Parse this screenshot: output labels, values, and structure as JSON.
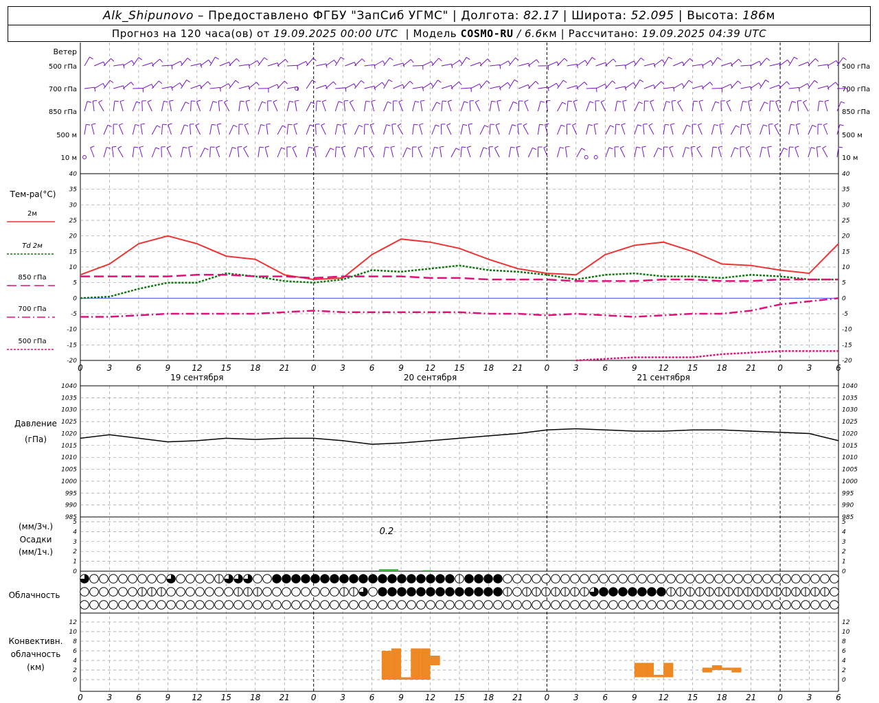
{
  "header": {
    "line1": {
      "station": "Alk_Shipunovo",
      "provided": " – Предоставлено ФГБУ \"ЗапСиб УГМС\" | Долгота: ",
      "lon": "82.17",
      "lat_label": " | Широта: ",
      "lat": "52.095",
      "alt_label": " | Высота: ",
      "alt": "186",
      "alt_unit": "м"
    },
    "line2": {
      "forecast": "Прогноз на 120 часа(ов) от ",
      "start": "19.09.2025 00:00 UTC",
      "model_label": "  | Модель ",
      "model": "COSMO-RU",
      "res": " / 6.6",
      "res_unit": "км",
      "calc_label": " | Рассчитано: ",
      "calc": "19.09.2025 04:39 UTC"
    }
  },
  "colors": {
    "t2m": "#ee3333",
    "td2m": "#117711",
    "t850": "#dd1177",
    "t700": "#dd1177",
    "t500": "#dd1177",
    "wind": "#7711cc",
    "precip": "#33bb33",
    "convective": "#ee8822",
    "pressure": "#000000",
    "zero_line": "#3355ff"
  },
  "chart_data": [
    {
      "id": "wind",
      "type": "other",
      "title": "Ветер",
      "levels": [
        "500 гПа",
        "700 гПа",
        "850 гПа",
        "500 м",
        "10  м"
      ]
    },
    {
      "id": "temperature",
      "type": "line",
      "title": "Тем-ра(°C)",
      "ylim": [
        -20,
        40
      ],
      "yticks": [
        -20,
        -15,
        -10,
        -5,
        0,
        5,
        10,
        15,
        20,
        25,
        30,
        35,
        40
      ],
      "x_hours": [
        0,
        3,
        6,
        9,
        12,
        15,
        18,
        21,
        24,
        27,
        30,
        33,
        36,
        39,
        42,
        45,
        48,
        51,
        54,
        57,
        60,
        63,
        66,
        69,
        72,
        75,
        78
      ],
      "series": [
        {
          "name": "2м",
          "key": "t2m",
          "dash": "",
          "values": [
            7.5,
            11,
            17.5,
            20,
            17.5,
            13.5,
            12.5,
            7.5,
            6,
            6.5,
            14,
            19,
            18,
            16,
            12.5,
            9.5,
            8,
            7.5,
            14,
            17,
            18,
            15,
            11,
            10.5,
            9,
            8,
            17.5
          ]
        },
        {
          "name": "Td  2м",
          "key": "td2m",
          "dash": "3,2",
          "values": [
            0,
            0.5,
            3,
            5,
            5,
            8,
            7,
            5.5,
            5,
            6,
            9,
            8.5,
            9.5,
            10.5,
            9,
            8.5,
            7.5,
            6,
            7.5,
            8,
            7,
            7,
            6.5,
            7.5,
            7,
            6,
            6
          ]
        },
        {
          "name": "850 гПа",
          "key": "t850",
          "dash": "14,6",
          "values": [
            7,
            7,
            7,
            7,
            7.5,
            7.5,
            7,
            7,
            6.5,
            7,
            7,
            7,
            6.5,
            6.5,
            6,
            6,
            6,
            5.5,
            5.5,
            5.5,
            6,
            6,
            5.5,
            5.5,
            6,
            6,
            6
          ]
        },
        {
          "name": "700 гПа",
          "key": "t700",
          "dash": "12,4,2,4",
          "values": [
            -6,
            -6,
            -5.5,
            -5,
            -5,
            -5,
            -5,
            -4.5,
            -4,
            -4.5,
            -4.5,
            -4.5,
            -4.5,
            -4.5,
            -5,
            -5,
            -5.5,
            -5,
            -5.5,
            -6,
            -5.5,
            -5,
            -5,
            -4,
            -2,
            -1,
            0
          ]
        },
        {
          "name": "500 гПа",
          "key": "t500",
          "dash": "3,2",
          "values": [
            null,
            null,
            null,
            null,
            null,
            null,
            null,
            null,
            null,
            null,
            null,
            null,
            null,
            null,
            null,
            null,
            null,
            -20,
            -19.5,
            -19,
            -19,
            -19,
            -18,
            -17.5,
            -17,
            -17,
            -17
          ]
        }
      ]
    },
    {
      "id": "pressure",
      "type": "line",
      "title": "Давление",
      "unit": "(гПа)",
      "ylim": [
        985,
        1040
      ],
      "yticks": [
        985,
        990,
        995,
        1000,
        1005,
        1010,
        1015,
        1020,
        1025,
        1030,
        1035,
        1040
      ],
      "x_hours": [
        0,
        3,
        6,
        9,
        12,
        15,
        18,
        21,
        24,
        27,
        30,
        33,
        36,
        39,
        42,
        45,
        48,
        51,
        54,
        57,
        60,
        63,
        66,
        69,
        72,
        75,
        78
      ],
      "series": [
        {
          "name": "",
          "key": "pressure",
          "values": [
            1018,
            1019.5,
            1018,
            1016.5,
            1017,
            1018,
            1017.5,
            1018,
            1018,
            1017,
            1015.5,
            1016,
            1017,
            1018,
            1019,
            1020,
            1021.5,
            1022,
            1021.5,
            1021,
            1021,
            1021.5,
            1021.5,
            1021,
            1020.5,
            1020,
            1017
          ]
        }
      ]
    },
    {
      "id": "precipitation",
      "type": "bar",
      "title": "Осадки",
      "unit_top": "(мм/3ч.)",
      "unit_bottom": "(мм/1ч.)",
      "ylim": [
        0,
        5
      ],
      "yticks": [
        0,
        1,
        2,
        3,
        4,
        5
      ],
      "annotation": "0.2",
      "bars": [
        {
          "x": 31.5,
          "v": 0.2,
          "w": 2
        },
        {
          "x": 35.5,
          "v": 0.1,
          "w": 1
        }
      ]
    },
    {
      "id": "cloudiness",
      "type": "other",
      "title": "Облачность"
    },
    {
      "id": "convective",
      "type": "bar",
      "title": "Конвективн. облачность (км)",
      "ylim": [
        0,
        12
      ],
      "yticks": [
        0,
        2,
        4,
        6,
        8,
        10,
        12
      ],
      "bars": [
        {
          "x": 31.5,
          "lo": 0,
          "hi": 6
        },
        {
          "x": 32.5,
          "lo": 0,
          "hi": 6.5
        },
        {
          "x": 33.5,
          "lo": 0,
          "hi": 0.5
        },
        {
          "x": 34.5,
          "lo": 0,
          "hi": 6.5
        },
        {
          "x": 35.5,
          "lo": 0,
          "hi": 6.5
        },
        {
          "x": 36.5,
          "lo": 3,
          "hi": 5
        },
        {
          "x": 57.5,
          "lo": 0.5,
          "hi": 3.5
        },
        {
          "x": 58.5,
          "lo": 0.5,
          "hi": 3.5
        },
        {
          "x": 59.5,
          "lo": 0.5,
          "hi": 1
        },
        {
          "x": 60.5,
          "lo": 0.5,
          "hi": 3.5
        },
        {
          "x": 64.5,
          "lo": 1.5,
          "hi": 2.5
        },
        {
          "x": 65.5,
          "lo": 2,
          "hi": 3
        },
        {
          "x": 66.5,
          "lo": 2,
          "hi": 2.5
        },
        {
          "x": 67.5,
          "lo": 1.5,
          "hi": 2.5
        }
      ]
    }
  ],
  "axis": {
    "hour_labels": [
      "0",
      "3",
      "6",
      "9",
      "12",
      "15",
      "18",
      "21",
      "0",
      "3",
      "6",
      "9",
      "12",
      "15",
      "18",
      "21",
      "0",
      "3",
      "6",
      "9",
      "12",
      "15",
      "18",
      "21",
      "0",
      "3",
      "6"
    ],
    "days": [
      "19 сентября",
      "20 сентября",
      "21 сентября"
    ]
  },
  "wind_grid": [
    [
      1,
      1,
      1,
      1,
      1,
      1,
      1,
      1,
      1,
      1,
      1,
      1,
      1,
      1,
      1,
      1,
      1,
      1,
      1,
      1,
      1,
      1,
      1,
      1,
      1,
      1,
      1,
      1,
      1,
      1,
      1,
      1,
      1,
      1,
      1,
      1,
      1,
      1,
      1,
      1,
      1,
      1,
      1,
      1,
      1,
      1,
      1,
      1,
      1,
      1,
      1,
      1,
      1,
      1,
      1,
      1,
      1,
      1,
      1,
      1,
      1,
      1,
      1,
      1,
      1,
      1,
      1,
      1,
      1,
      1,
      1,
      1,
      1,
      1,
      1,
      1,
      1,
      1,
      1
    ],
    [
      1,
      1,
      1,
      1,
      1,
      1,
      1,
      1,
      1,
      1,
      1,
      1,
      1,
      1,
      1,
      1,
      1,
      1,
      1,
      1,
      1,
      1,
      0,
      1,
      1,
      1,
      1,
      1,
      1,
      1,
      1,
      1,
      1,
      1,
      1,
      1,
      1,
      1,
      1,
      1,
      1,
      1,
      1,
      1,
      1,
      1,
      1,
      1,
      1,
      1,
      1,
      1,
      1,
      1,
      1,
      1,
      1,
      1,
      1,
      1,
      1,
      1,
      1,
      1,
      1,
      1,
      1,
      1,
      1,
      1,
      1,
      1,
      1,
      1,
      1,
      1,
      1,
      1,
      1
    ],
    [
      1,
      1,
      1,
      1,
      1,
      1,
      1,
      1,
      1,
      1,
      1,
      1,
      1,
      1,
      1,
      1,
      1,
      1,
      1,
      1,
      1,
      1,
      1,
      1,
      1,
      1,
      1,
      1,
      1,
      1,
      1,
      1,
      1,
      1,
      1,
      1,
      1,
      1,
      1,
      1,
      1,
      1,
      1,
      1,
      1,
      1,
      1,
      1,
      1,
      1,
      1,
      1,
      1,
      1,
      1,
      1,
      1,
      1,
      1,
      1,
      1,
      1,
      1,
      1,
      1,
      1,
      1,
      1,
      1,
      1,
      1,
      1,
      1,
      1,
      1,
      1,
      1,
      1,
      1
    ],
    [
      1,
      1,
      1,
      1,
      1,
      1,
      1,
      1,
      1,
      1,
      1,
      1,
      1,
      1,
      1,
      1,
      1,
      1,
      1,
      1,
      1,
      1,
      1,
      1,
      1,
      1,
      1,
      1,
      1,
      1,
      1,
      1,
      1,
      1,
      1,
      1,
      1,
      1,
      1,
      1,
      1,
      1,
      1,
      1,
      1,
      1,
      1,
      1,
      1,
      1,
      1,
      1,
      1,
      1,
      1,
      1,
      1,
      1,
      1,
      1,
      1,
      1,
      1,
      1,
      1,
      1,
      1,
      1,
      1,
      1,
      1,
      1,
      1,
      1,
      1,
      1,
      1,
      1,
      1
    ],
    [
      0,
      1,
      1,
      1,
      1,
      1,
      1,
      1,
      1,
      1,
      1,
      1,
      1,
      1,
      1,
      1,
      1,
      1,
      1,
      1,
      1,
      1,
      1,
      1,
      1,
      1,
      1,
      1,
      1,
      1,
      1,
      1,
      1,
      1,
      1,
      1,
      1,
      1,
      1,
      1,
      1,
      1,
      1,
      1,
      1,
      1,
      1,
      1,
      1,
      1,
      1,
      1,
      0,
      0,
      1,
      1,
      1,
      1,
      1,
      1,
      1,
      1,
      1,
      1,
      1,
      1,
      1,
      1,
      1,
      1,
      1,
      1,
      1,
      1,
      1,
      1,
      1,
      1,
      1
    ]
  ],
  "cloud_grid": [
    [
      3,
      0,
      0,
      0,
      0,
      0,
      0,
      0,
      0,
      3,
      0,
      0,
      0,
      0,
      1,
      3,
      3,
      3,
      0,
      0,
      4,
      4,
      4,
      4,
      4,
      4,
      4,
      4,
      4,
      4,
      4,
      4,
      4,
      4,
      4,
      4,
      4,
      4,
      4,
      1,
      4,
      4,
      4,
      4,
      0,
      0,
      0,
      0,
      0,
      0,
      0,
      0,
      0,
      0,
      0,
      0,
      0,
      0,
      0,
      0,
      0,
      0,
      0,
      0,
      0,
      0,
      0,
      0,
      0,
      0,
      0,
      0,
      0,
      0,
      0,
      0,
      0,
      0,
      0
    ],
    [
      0,
      0,
      0,
      0,
      0,
      0,
      1,
      1,
      1,
      0,
      0,
      0,
      0,
      0,
      0,
      0,
      1,
      1,
      1,
      0,
      0,
      0,
      0,
      0,
      0,
      0,
      0,
      1,
      1,
      3,
      0,
      4,
      4,
      4,
      4,
      4,
      4,
      4,
      4,
      4,
      4,
      4,
      4,
      4,
      1,
      0,
      1,
      1,
      1,
      1,
      1,
      1,
      1,
      3,
      4,
      4,
      4,
      4,
      4,
      4,
      4,
      1,
      1,
      1,
      1,
      1,
      1,
      1,
      1,
      1,
      1,
      1,
      1,
      1,
      1,
      1,
      1,
      1,
      0
    ],
    [
      0,
      0,
      0,
      0,
      0,
      0,
      0,
      0,
      0,
      0,
      0,
      0,
      0,
      0,
      0,
      0,
      0,
      0,
      0,
      0,
      0,
      0,
      0,
      0,
      0,
      0,
      0,
      0,
      0,
      0,
      0,
      0,
      0,
      0,
      0,
      0,
      0,
      0,
      0,
      0,
      0,
      0,
      0,
      0,
      0,
      0,
      0,
      0,
      0,
      0,
      0,
      0,
      0,
      0,
      0,
      0,
      0,
      0,
      0,
      0,
      0,
      0,
      0,
      0,
      0,
      0,
      0,
      0,
      0,
      0,
      0,
      0,
      0,
      0,
      0,
      0,
      0,
      0,
      0
    ]
  ]
}
